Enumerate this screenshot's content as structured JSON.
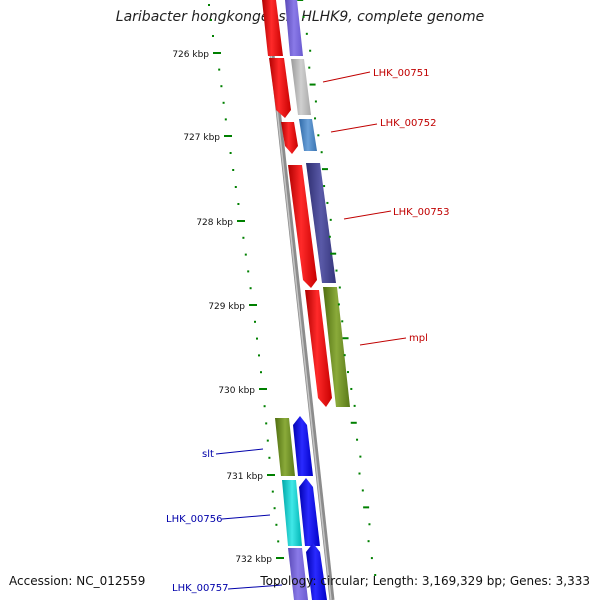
{
  "title": "Laribacter hongkongensis HLHK9, complete genome",
  "footer": {
    "accession": "Accession: NC_012559",
    "summary": "Topology: circular; Length: 3,169,329 bp; Genes: 3,333"
  },
  "ticks": [
    "726 kbp",
    "727 kbp",
    "728 kbp",
    "729 kbp",
    "730 kbp",
    "731 kbp",
    "732 kbp"
  ],
  "genes_right": [
    {
      "label": "LHK_00751",
      "color": "#c00000"
    },
    {
      "label": "LHK_00752",
      "color": "#c00000"
    },
    {
      "label": "LHK_00753",
      "color": "#c00000"
    },
    {
      "label": "mpl",
      "color": "#c00000"
    }
  ],
  "genes_left": [
    {
      "label": "slt",
      "color": "#0000aa"
    },
    {
      "label": "LHK_00756",
      "color": "#0000aa"
    },
    {
      "label": "LHK_00757",
      "color": "#0000aa"
    }
  ],
  "colors": {
    "forward_cds": "#ff0000",
    "reverse_cds": "#0000ff",
    "backbone": "#8c8c8c",
    "gc_ticks": "#008000",
    "scale_ticks": "#008000"
  }
}
